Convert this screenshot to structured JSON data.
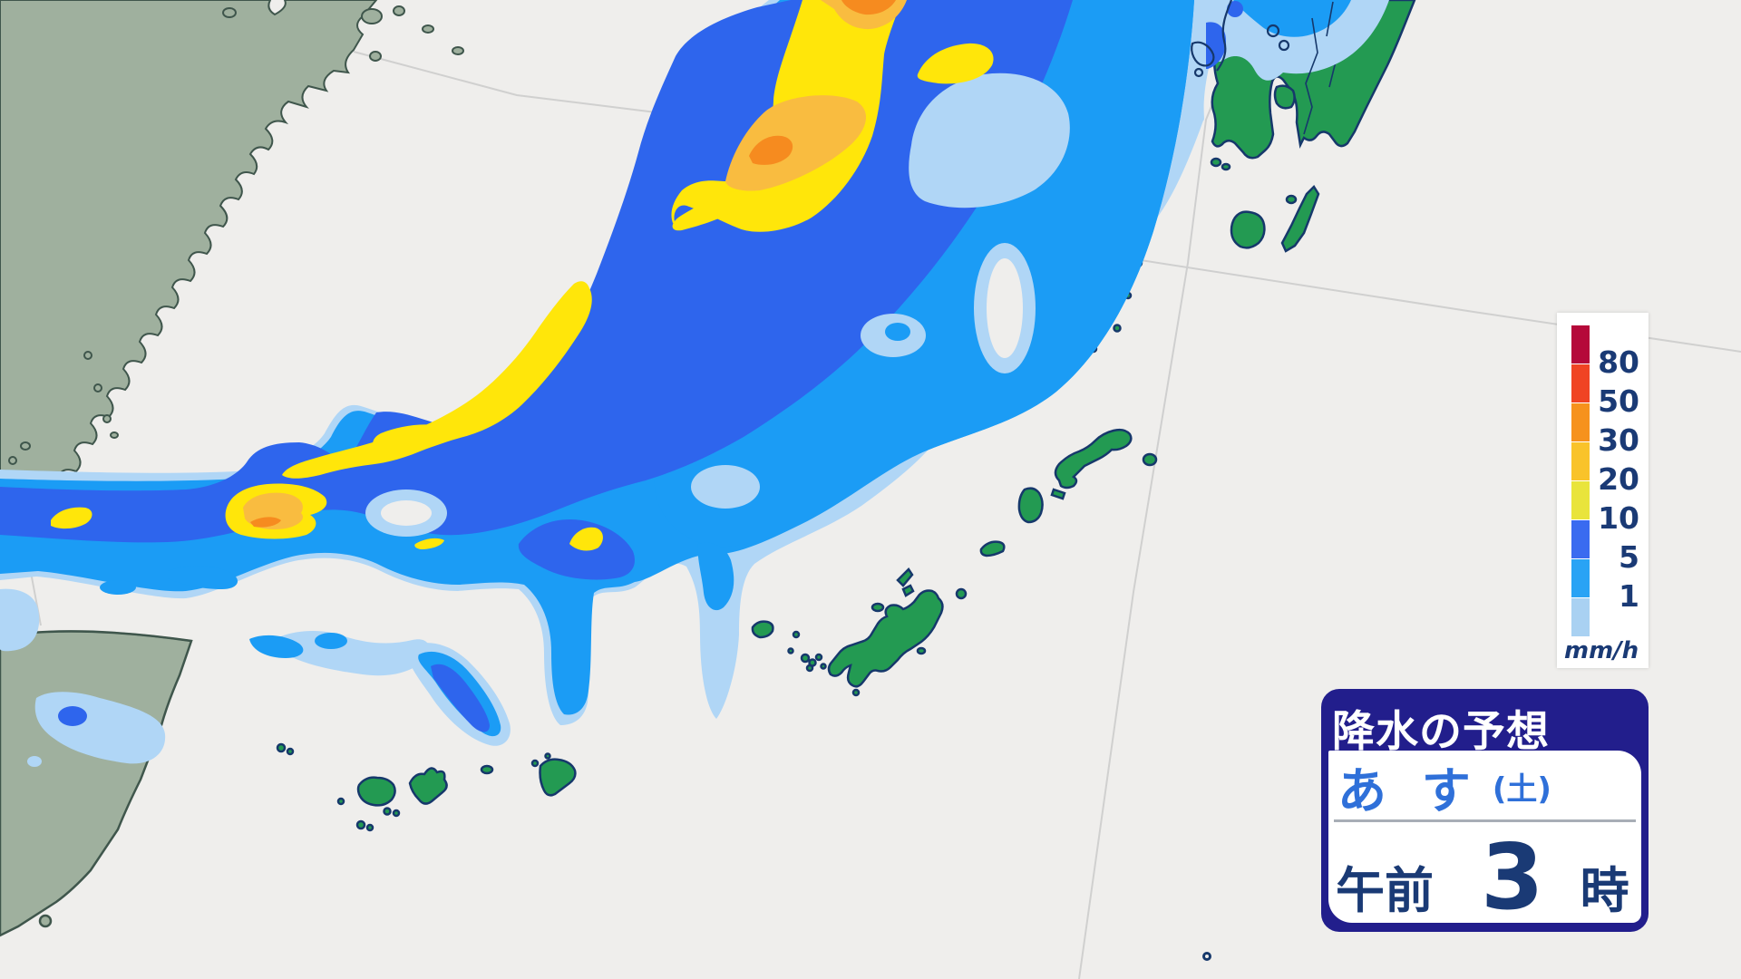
{
  "legend": {
    "unit": "mm/h",
    "items": [
      {
        "label": "80",
        "color": "#b5093a"
      },
      {
        "label": "50",
        "color": "#f04423"
      },
      {
        "label": "30",
        "color": "#f6921d"
      },
      {
        "label": "20",
        "color": "#f9c32a"
      },
      {
        "label": "10",
        "color": "#e9e43b"
      },
      {
        "label": "5",
        "color": "#3a6bf0"
      },
      {
        "label": "1",
        "color": "#29a3f5"
      },
      {
        "label": "",
        "color": "#a9d1f2"
      }
    ]
  },
  "info_box": {
    "title": "降水の予想",
    "day_label": "あ す",
    "day_of_week": "(土)",
    "period": "午前",
    "hour": "3",
    "hour_suffix": "時"
  },
  "palette": {
    "sea": "#efeeec",
    "land_cn": "#9fb09e",
    "border_cn": "#3f564c",
    "land_jp": "#239a52",
    "border_jp": "#16386b",
    "boundary_line": "#cccccc",
    "rain_lt1": "#b0d6f6",
    "rain_1_5": "#1b9cf5",
    "rain_5_10": "#2e65ed",
    "rain_10_20": "#ffe60a",
    "rain_20_30": "#f9bc40",
    "rain_30_50": "#f68b1f",
    "box_navy": "#221e8c",
    "day_blue": "#2f70d9",
    "text_navy": "#1a3a75",
    "divider": "#a8aeb6"
  }
}
